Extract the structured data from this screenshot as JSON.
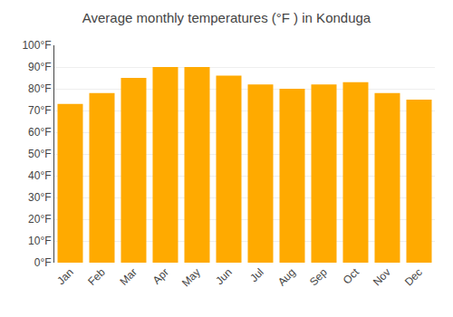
{
  "chart_data": {
    "type": "bar",
    "title": "Average monthly temperatures (°F ) in Konduga",
    "categories": [
      "Jan",
      "Feb",
      "Mar",
      "Apr",
      "May",
      "Jun",
      "Jul",
      "Aug",
      "Sep",
      "Oct",
      "Nov",
      "Dec"
    ],
    "values": [
      73,
      78,
      85,
      90,
      90,
      86,
      82,
      80,
      82,
      83,
      78,
      75
    ],
    "color": "#FFAA00",
    "ylim": [
      0,
      100
    ],
    "yticks": [
      {
        "value": 0,
        "label": "0°F"
      },
      {
        "value": 10,
        "label": "10°F"
      },
      {
        "value": 20,
        "label": "20°F"
      },
      {
        "value": 30,
        "label": "30°F"
      },
      {
        "value": 40,
        "label": "40°F"
      },
      {
        "value": 50,
        "label": "50°F"
      },
      {
        "value": 60,
        "label": "60°F"
      },
      {
        "value": 70,
        "label": "70°F"
      },
      {
        "value": 80,
        "label": "80°F"
      },
      {
        "value": 90,
        "label": "90°F"
      },
      {
        "value": 100,
        "label": "100°F"
      }
    ],
    "grid": true
  }
}
